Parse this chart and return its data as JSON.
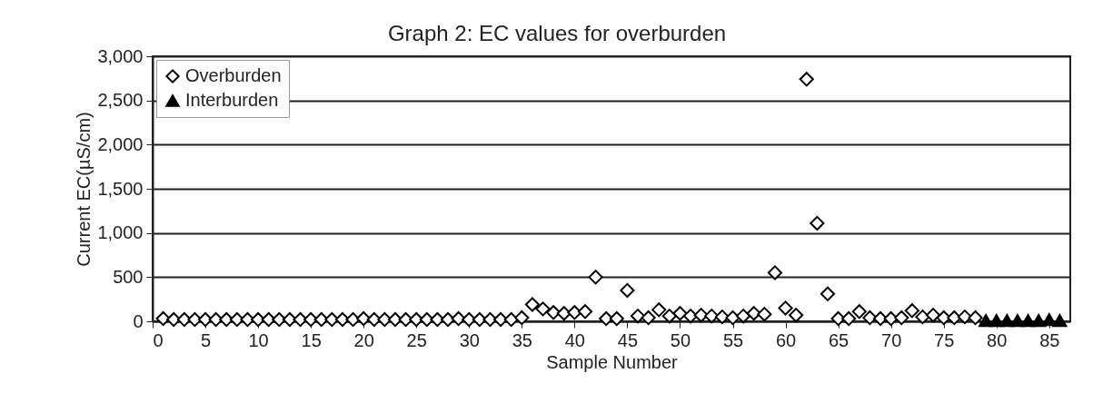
{
  "chart_data": {
    "type": "scatter",
    "title": "Graph 2:  EC values for overburden",
    "xlabel": "Sample Number",
    "ylabel": "Current EC(µS/cm)",
    "xlim": [
      0,
      87
    ],
    "xticks": [
      0,
      5,
      10,
      15,
      20,
      25,
      30,
      35,
      40,
      45,
      50,
      55,
      60,
      65,
      70,
      75,
      80,
      85
    ],
    "ylim": [
      0,
      3000
    ],
    "yticks": [
      0,
      500,
      {
        "value": 1000,
        "label": "1,000"
      },
      {
        "value": 1500,
        "label": "1,500"
      },
      {
        "value": 2000,
        "label": "2,000"
      },
      {
        "value": 2500,
        "label": "2,500"
      },
      {
        "value": 3000,
        "label": "3,000"
      }
    ],
    "grid": "y",
    "legend": "top left",
    "series": [
      {
        "name": "Overburden",
        "color": "#000000",
        "marker": "diamond",
        "x": [
          1,
          2,
          3,
          4,
          5,
          6,
          7,
          8,
          9,
          10,
          11,
          12,
          13,
          14,
          15,
          16,
          17,
          18,
          19,
          20,
          21,
          22,
          23,
          24,
          25,
          26,
          27,
          28,
          29,
          30,
          31,
          32,
          33,
          34,
          35,
          36,
          37,
          38,
          39,
          40,
          41,
          42,
          43,
          44,
          45,
          46,
          47,
          48,
          49,
          50,
          51,
          52,
          53,
          54,
          55,
          56,
          57,
          58,
          59,
          60,
          61,
          62,
          63,
          64,
          65,
          66,
          67,
          68,
          69,
          70,
          71,
          72,
          73,
          74,
          75,
          76,
          77,
          78
        ],
        "values": [
          30,
          20,
          20,
          20,
          20,
          20,
          20,
          20,
          20,
          20,
          20,
          20,
          20,
          20,
          20,
          20,
          20,
          20,
          20,
          30,
          20,
          20,
          20,
          20,
          20,
          20,
          20,
          20,
          30,
          20,
          20,
          20,
          20,
          20,
          40,
          190,
          140,
          100,
          90,
          100,
          110,
          500,
          30,
          30,
          350,
          60,
          40,
          130,
          60,
          90,
          60,
          70,
          60,
          50,
          40,
          60,
          90,
          80,
          550,
          150,
          70,
          2740,
          1110,
          310,
          30,
          30,
          110,
          40,
          30,
          30,
          40,
          120,
          50,
          70,
          40,
          40,
          50,
          40
        ]
      },
      {
        "name": "Interburden",
        "color": "#000000",
        "marker": "triangle",
        "x": [
          79,
          80,
          81,
          82,
          83,
          84,
          85,
          86
        ],
        "values": [
          10,
          10,
          10,
          10,
          10,
          10,
          20,
          10
        ]
      }
    ]
  }
}
